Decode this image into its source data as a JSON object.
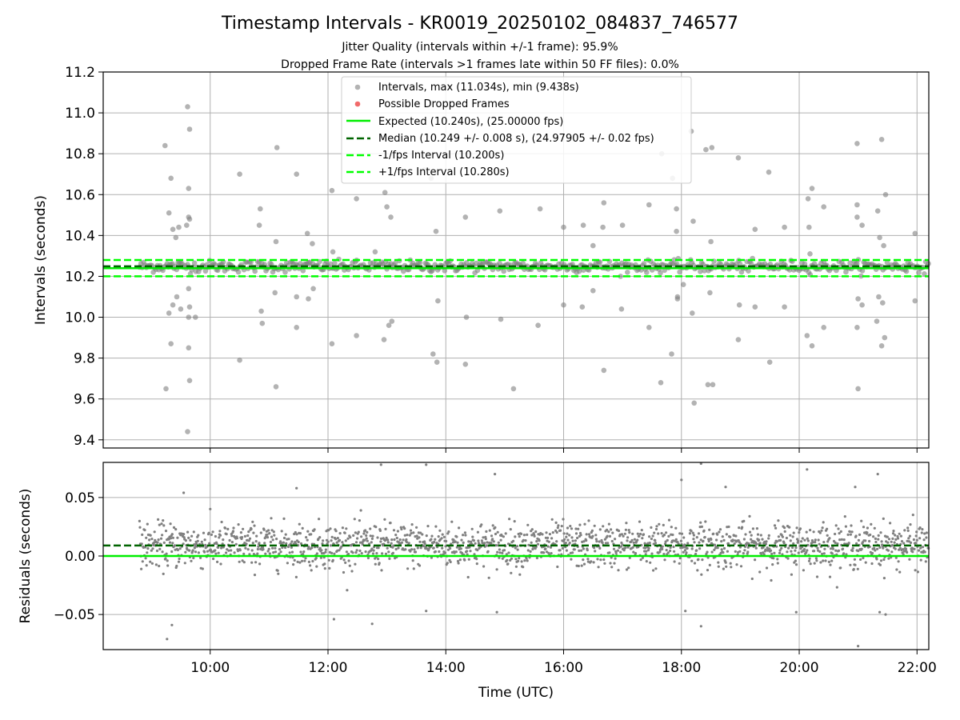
{
  "figure": {
    "title": "Timestamp Intervals - KR0019_20250102_084837_746577",
    "subtitle_1": "Jitter Quality (intervals within +/-1 frame): 95.9%",
    "subtitle_2": "Dropped Frame Rate (intervals >1 frames late within 50 FF files): 0.0%",
    "xlabel": "Time (UTC)",
    "colors": {
      "scatter": "#808080",
      "dropped": "#f05a5a",
      "expected": "#00ee00",
      "median": "#006400",
      "fps_band": "#00ff00",
      "grid": "#b0b0b0"
    }
  },
  "chart_data": [
    {
      "name": "intervals",
      "type": "scatter",
      "ylabel": "Intervals (seconds)",
      "ylim": [
        9.36,
        11.2
      ],
      "yticks": [
        9.4,
        9.6,
        9.8,
        10.0,
        10.2,
        10.4,
        10.6,
        10.8,
        11.0,
        11.2
      ],
      "ytick_labels": [
        "9.4",
        "9.6",
        "9.8",
        "10.0",
        "10.2",
        "10.4",
        "10.6",
        "10.8",
        "11.0",
        "11.2"
      ],
      "grid": true,
      "legend_position": "top-center",
      "legend": [
        {
          "label": "Intervals, max (11.034s), min (9.438s)",
          "kind": "marker",
          "color": "#808080"
        },
        {
          "label": "Possible Dropped Frames",
          "kind": "marker",
          "color": "#f05a5a"
        },
        {
          "label": "Expected (10.240s), (25.00000 fps)",
          "kind": "line",
          "color": "#00ee00"
        },
        {
          "label": "Median (10.249 +/- 0.008 s), (24.97905 +/- 0.02 fps)",
          "kind": "dashed",
          "color": "#006400"
        },
        {
          "label": "-1/fps Interval (10.200s)",
          "kind": "dashed",
          "color": "#00ff00"
        },
        {
          "label": "+1/fps Interval (10.280s)",
          "kind": "dashed",
          "color": "#00ff00"
        }
      ],
      "lines": {
        "expected": 10.24,
        "median": 10.249,
        "minus_fps": 10.2,
        "plus_fps": 10.28
      },
      "outliers": [
        {
          "t": "09:14",
          "v": 10.84
        },
        {
          "t": "09:18",
          "v": 10.51
        },
        {
          "t": "09:20",
          "v": 10.68
        },
        {
          "t": "09:22",
          "v": 10.43
        },
        {
          "t": "09:15",
          "v": 9.65
        },
        {
          "t": "09:20",
          "v": 9.87
        },
        {
          "t": "09:25",
          "v": 10.39
        },
        {
          "t": "09:28",
          "v": 10.44
        },
        {
          "t": "09:22",
          "v": 10.06
        },
        {
          "t": "09:26",
          "v": 10.1
        },
        {
          "t": "09:30",
          "v": 10.04
        },
        {
          "t": "09:18",
          "v": 10.02
        },
        {
          "t": "09:36",
          "v": 10.45
        },
        {
          "t": "09:37",
          "v": 11.03
        },
        {
          "t": "09:39",
          "v": 10.92
        },
        {
          "t": "09:38",
          "v": 10.63
        },
        {
          "t": "09:38",
          "v": 10.49
        },
        {
          "t": "09:39",
          "v": 10.48
        },
        {
          "t": "09:38",
          "v": 10.14
        },
        {
          "t": "09:39",
          "v": 10.05
        },
        {
          "t": "09:38",
          "v": 10.0
        },
        {
          "t": "09:38",
          "v": 9.85
        },
        {
          "t": "09:39",
          "v": 9.69
        },
        {
          "t": "09:37",
          "v": 9.44
        },
        {
          "t": "09:45",
          "v": 10.0
        },
        {
          "t": "10:30",
          "v": 10.7
        },
        {
          "t": "10:30",
          "v": 9.79
        },
        {
          "t": "10:50",
          "v": 10.45
        },
        {
          "t": "10:51",
          "v": 10.53
        },
        {
          "t": "10:52",
          "v": 10.03
        },
        {
          "t": "10:53",
          "v": 9.97
        },
        {
          "t": "11:08",
          "v": 10.83
        },
        {
          "t": "11:07",
          "v": 10.37
        },
        {
          "t": "11:06",
          "v": 10.12
        },
        {
          "t": "11:07",
          "v": 9.66
        },
        {
          "t": "11:28",
          "v": 10.7
        },
        {
          "t": "11:28",
          "v": 10.1
        },
        {
          "t": "11:28",
          "v": 9.95
        },
        {
          "t": "11:39",
          "v": 10.41
        },
        {
          "t": "11:40",
          "v": 10.09
        },
        {
          "t": "11:44",
          "v": 10.36
        },
        {
          "t": "11:45",
          "v": 10.14
        },
        {
          "t": "12:04",
          "v": 10.62
        },
        {
          "t": "12:05",
          "v": 10.32
        },
        {
          "t": "12:04",
          "v": 9.87
        },
        {
          "t": "12:29",
          "v": 10.58
        },
        {
          "t": "12:29",
          "v": 9.91
        },
        {
          "t": "12:48",
          "v": 10.32
        },
        {
          "t": "12:58",
          "v": 10.61
        },
        {
          "t": "13:00",
          "v": 10.54
        },
        {
          "t": "13:04",
          "v": 10.49
        },
        {
          "t": "12:57",
          "v": 9.89
        },
        {
          "t": "13:02",
          "v": 9.96
        },
        {
          "t": "13:05",
          "v": 9.98
        },
        {
          "t": "13:38",
          "v": 10.72
        },
        {
          "t": "13:45",
          "v": 10.68
        },
        {
          "t": "13:50",
          "v": 10.42
        },
        {
          "t": "13:52",
          "v": 10.08
        },
        {
          "t": "13:47",
          "v": 9.82
        },
        {
          "t": "13:51",
          "v": 9.78
        },
        {
          "t": "14:20",
          "v": 10.49
        },
        {
          "t": "14:21",
          "v": 10.0
        },
        {
          "t": "14:20",
          "v": 9.77
        },
        {
          "t": "14:55",
          "v": 10.52
        },
        {
          "t": "14:56",
          "v": 9.99
        },
        {
          "t": "15:09",
          "v": 9.65
        },
        {
          "t": "15:36",
          "v": 10.53
        },
        {
          "t": "15:34",
          "v": 9.96
        },
        {
          "t": "16:00",
          "v": 10.44
        },
        {
          "t": "16:00",
          "v": 10.06
        },
        {
          "t": "16:20",
          "v": 10.45
        },
        {
          "t": "16:19",
          "v": 10.05
        },
        {
          "t": "16:30",
          "v": 10.35
        },
        {
          "t": "16:30",
          "v": 10.13
        },
        {
          "t": "16:41",
          "v": 10.56
        },
        {
          "t": "16:40",
          "v": 10.44
        },
        {
          "t": "16:41",
          "v": 9.74
        },
        {
          "t": "17:00",
          "v": 10.45
        },
        {
          "t": "16:59",
          "v": 10.04
        },
        {
          "t": "17:27",
          "v": 10.55
        },
        {
          "t": "17:27",
          "v": 9.95
        },
        {
          "t": "17:40",
          "v": 10.8
        },
        {
          "t": "17:39",
          "v": 9.68
        },
        {
          "t": "17:51",
          "v": 10.68
        },
        {
          "t": "17:50",
          "v": 9.82
        },
        {
          "t": "17:55",
          "v": 10.53
        },
        {
          "t": "17:55",
          "v": 10.42
        },
        {
          "t": "17:56",
          "v": 10.1
        },
        {
          "t": "17:56",
          "v": 10.09
        },
        {
          "t": "18:02",
          "v": 10.16
        },
        {
          "t": "18:10",
          "v": 10.91
        },
        {
          "t": "18:12",
          "v": 10.47
        },
        {
          "t": "18:11",
          "v": 10.02
        },
        {
          "t": "18:13",
          "v": 9.58
        },
        {
          "t": "18:25",
          "v": 10.82
        },
        {
          "t": "18:31",
          "v": 10.83
        },
        {
          "t": "18:27",
          "v": 9.67
        },
        {
          "t": "18:32",
          "v": 9.67
        },
        {
          "t": "18:30",
          "v": 10.37
        },
        {
          "t": "18:29",
          "v": 10.12
        },
        {
          "t": "18:58",
          "v": 10.78
        },
        {
          "t": "18:59",
          "v": 10.06
        },
        {
          "t": "18:58",
          "v": 9.89
        },
        {
          "t": "19:15",
          "v": 10.43
        },
        {
          "t": "19:15",
          "v": 10.05
        },
        {
          "t": "19:29",
          "v": 10.71
        },
        {
          "t": "19:30",
          "v": 9.78
        },
        {
          "t": "19:45",
          "v": 10.44
        },
        {
          "t": "19:45",
          "v": 10.05
        },
        {
          "t": "20:09",
          "v": 10.58
        },
        {
          "t": "20:13",
          "v": 10.63
        },
        {
          "t": "20:10",
          "v": 10.44
        },
        {
          "t": "20:11",
          "v": 10.31
        },
        {
          "t": "20:08",
          "v": 9.91
        },
        {
          "t": "20:13",
          "v": 9.86
        },
        {
          "t": "20:25",
          "v": 10.54
        },
        {
          "t": "20:25",
          "v": 9.95
        },
        {
          "t": "20:59",
          "v": 10.85
        },
        {
          "t": "20:59",
          "v": 10.55
        },
        {
          "t": "20:59",
          "v": 10.49
        },
        {
          "t": "21:04",
          "v": 10.45
        },
        {
          "t": "21:00",
          "v": 10.09
        },
        {
          "t": "20:59",
          "v": 9.95
        },
        {
          "t": "21:00",
          "v": 9.65
        },
        {
          "t": "21:04",
          "v": 10.06
        },
        {
          "t": "21:20",
          "v": 10.52
        },
        {
          "t": "21:22",
          "v": 10.39
        },
        {
          "t": "21:24",
          "v": 10.87
        },
        {
          "t": "21:26",
          "v": 10.35
        },
        {
          "t": "21:28",
          "v": 10.6
        },
        {
          "t": "21:21",
          "v": 10.1
        },
        {
          "t": "21:25",
          "v": 10.07
        },
        {
          "t": "21:19",
          "v": 9.98
        },
        {
          "t": "21:24",
          "v": 9.86
        },
        {
          "t": "21:27",
          "v": 9.9
        },
        {
          "t": "21:58",
          "v": 10.41
        },
        {
          "t": "21:58",
          "v": 10.08
        }
      ]
    },
    {
      "name": "residuals",
      "type": "scatter",
      "ylabel": "Residuals (seconds)",
      "ylim": [
        -0.08,
        0.08
      ],
      "yticks": [
        -0.05,
        0.0,
        0.05
      ],
      "ytick_labels": [
        "−0.05",
        "0.00",
        "0.05"
      ],
      "grid": true,
      "lines": {
        "zero": 0.0,
        "median_offset": 0.009
      },
      "outliers": [
        {
          "t": "09:33",
          "v": 0.054
        },
        {
          "t": "09:16",
          "v": -0.071
        },
        {
          "t": "09:21",
          "v": -0.059
        },
        {
          "t": "11:28",
          "v": 0.058
        },
        {
          "t": "12:06",
          "v": -0.054
        },
        {
          "t": "12:45",
          "v": -0.058
        },
        {
          "t": "12:54",
          "v": 0.078
        },
        {
          "t": "13:40",
          "v": 0.078
        },
        {
          "t": "13:40",
          "v": -0.047
        },
        {
          "t": "14:50",
          "v": 0.07
        },
        {
          "t": "14:52",
          "v": -0.048
        },
        {
          "t": "18:00",
          "v": 0.065
        },
        {
          "t": "18:04",
          "v": -0.047
        },
        {
          "t": "18:20",
          "v": 0.079
        },
        {
          "t": "18:20",
          "v": -0.06
        },
        {
          "t": "18:45",
          "v": 0.059
        },
        {
          "t": "20:08",
          "v": 0.074
        },
        {
          "t": "19:57",
          "v": -0.048
        },
        {
          "t": "20:57",
          "v": 0.059
        },
        {
          "t": "21:00",
          "v": -0.077
        },
        {
          "t": "21:20",
          "v": 0.07
        },
        {
          "t": "21:22",
          "v": -0.048
        },
        {
          "t": "21:28",
          "v": -0.05
        }
      ]
    }
  ],
  "x_axis": {
    "range": [
      "08:11",
      "22:12"
    ],
    "data_start": "08:48",
    "data_end": "22:12",
    "ticks": [
      "10:00",
      "12:00",
      "14:00",
      "16:00",
      "18:00",
      "20:00",
      "22:00"
    ]
  }
}
